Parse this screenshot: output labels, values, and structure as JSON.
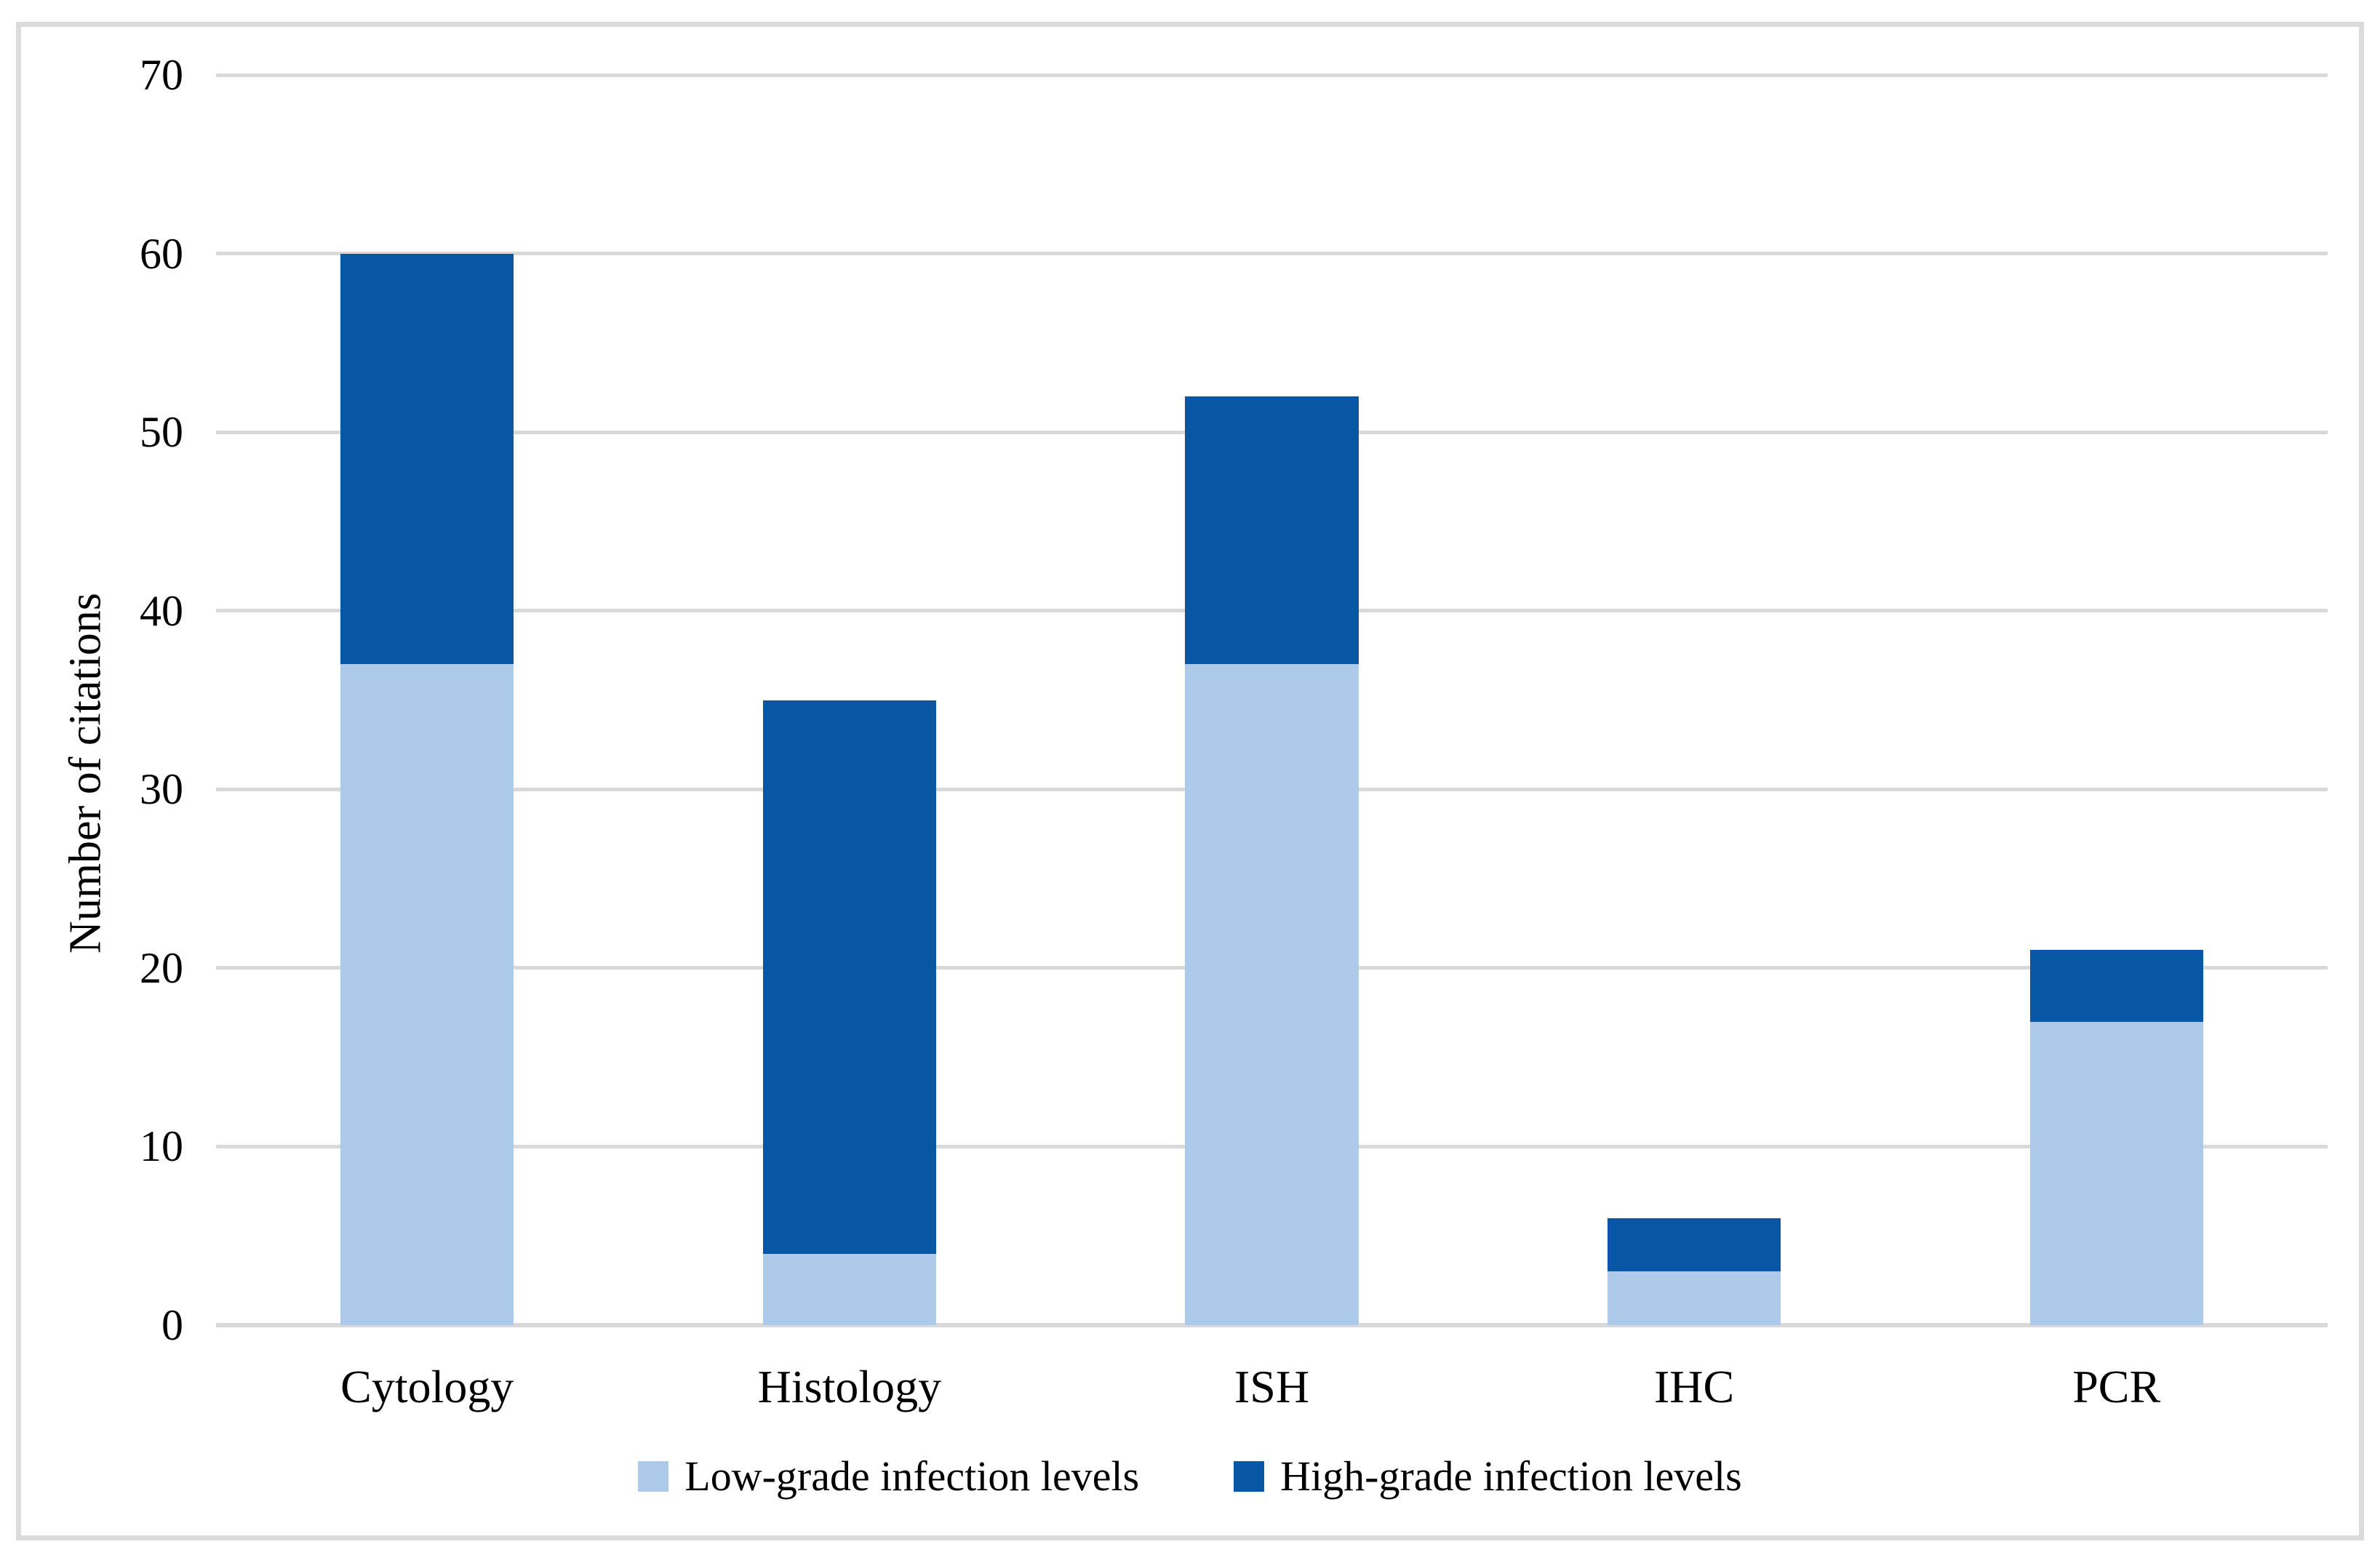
{
  "figure": {
    "background": "#ffffff",
    "border_color": "#dbdbdb",
    "gridline_color": "#d9d9d9",
    "axis_line_color": "#d9d9d9",
    "text_color": "#000000"
  },
  "chart_data": {
    "type": "bar",
    "stacked": true,
    "title": "",
    "xlabel": "",
    "ylabel": "Number of citations",
    "ylim": [
      0,
      70
    ],
    "ytick_interval": 10,
    "yticks": [
      0,
      10,
      20,
      30,
      40,
      50,
      60,
      70
    ],
    "grid": true,
    "legend_position": "bottom",
    "categories": [
      "Cytology",
      "Histology",
      "ISH",
      "IHC",
      "PCR"
    ],
    "series": [
      {
        "name": "Low-grade infection levels",
        "color": "#aecaeb",
        "values": [
          37,
          4,
          37,
          3,
          17
        ]
      },
      {
        "name": "High-grade infection levels",
        "color": "#0857a5",
        "values": [
          23,
          31,
          15,
          3,
          4
        ]
      }
    ],
    "totals": [
      60,
      35,
      52,
      6,
      21
    ]
  }
}
